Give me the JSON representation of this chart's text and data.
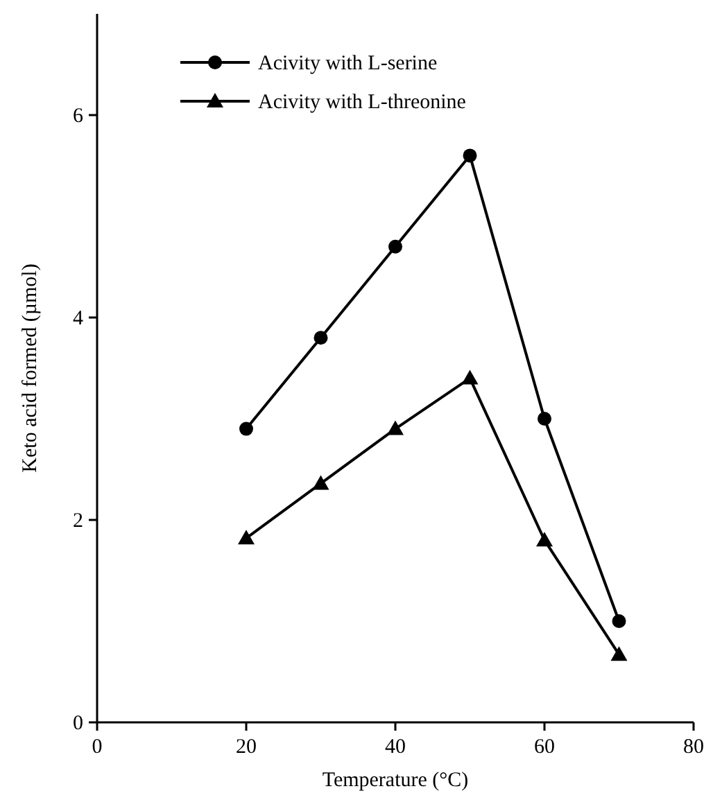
{
  "chart_data": {
    "type": "line",
    "xlabel": "Temperature (°C)",
    "ylabel": "Keto acid formed (µmol)",
    "x": [
      20,
      30,
      40,
      50,
      60,
      70
    ],
    "series": [
      {
        "name": "Acivity with L-serine",
        "color": "#000000",
        "marker": "circle",
        "values": [
          2.9,
          3.8,
          4.7,
          5.6,
          3.0,
          1.0
        ]
      },
      {
        "name": "Acivity with L-threonine",
        "color": "#000000",
        "marker": "triangle",
        "values": [
          1.82,
          2.36,
          2.9,
          3.4,
          1.8,
          0.67
        ]
      }
    ],
    "xlim": [
      0,
      80
    ],
    "xticks": [
      0,
      20,
      40,
      60,
      80
    ],
    "ylim": [
      0,
      7
    ],
    "yticks": [
      0,
      2,
      4,
      6
    ],
    "grid": false,
    "legend": "top left",
    "line_style": "solid"
  }
}
